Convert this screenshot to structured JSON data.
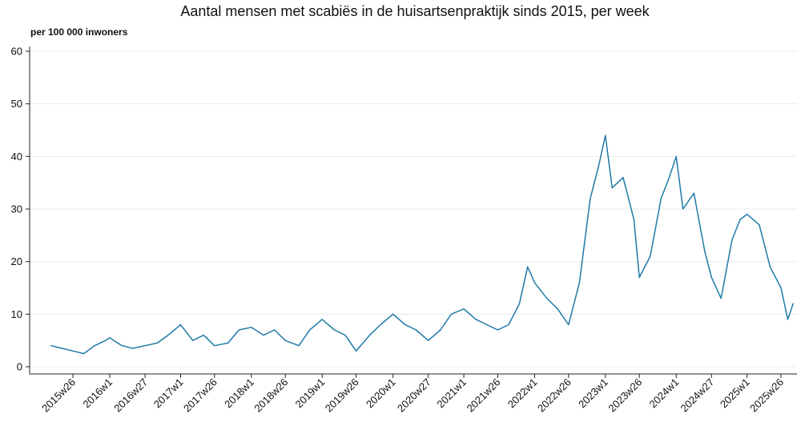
{
  "chart_data": {
    "type": "line",
    "title": "Aantal mensen met scabiës in de huisartsenpraktijk sinds 2015, per week",
    "unit_label": "per 100 000 inwoners",
    "xlabel": "",
    "ylabel": "",
    "ylim": [
      0,
      60
    ],
    "yticks": [
      "0",
      "10",
      "20",
      "30",
      "40",
      "50",
      "60"
    ],
    "grid": "horizontal",
    "line_color": "#1f7aa8",
    "xticks": [
      "2015w26",
      "2016w1",
      "2016w27",
      "2017w1",
      "2017w26",
      "2018w1",
      "2018w26",
      "2019w1",
      "2019w26",
      "2020w1",
      "2020w27",
      "2021w1",
      "2021w26",
      "2022w1",
      "2022w26",
      "2023w1",
      "2023w26",
      "2024w1",
      "2024w27",
      "2025w1",
      "2025w26"
    ],
    "series": [
      {
        "x": [
          "2015w10",
          "2015w18",
          "2015w26",
          "2015w34",
          "2015w42",
          "2015w50",
          "2016w1",
          "2016w10",
          "2016w18",
          "2016w27",
          "2016w36",
          "2016w44",
          "2017w1",
          "2017w10",
          "2017w18",
          "2017w26",
          "2017w36",
          "2017w44",
          "2018w1",
          "2018w10",
          "2018w18",
          "2018w26",
          "2018w36",
          "2018w44",
          "2019w1",
          "2019w10",
          "2019w18",
          "2019w26",
          "2019w36",
          "2019w44",
          "2020w1",
          "2020w10",
          "2020w18",
          "2020w27",
          "2020w36",
          "2020w44",
          "2021w1",
          "2021w10",
          "2021w18",
          "2021w26",
          "2021w34",
          "2021w42",
          "2021w48",
          "2022w1",
          "2022w10",
          "2022w18",
          "2022w26",
          "2022w34",
          "2022w42",
          "2022w48",
          "2023w1",
          "2023w6",
          "2023w14",
          "2023w22",
          "2023w26",
          "2023w34",
          "2023w42",
          "2023w48",
          "2024w1",
          "2024w6",
          "2024w14",
          "2024w22",
          "2024w27",
          "2024w34",
          "2024w42",
          "2024w48",
          "2025w1",
          "2025w10",
          "2025w18",
          "2025w22",
          "2025w26",
          "2025w31",
          "2025w35"
        ],
        "values": [
          4,
          3.5,
          3,
          2.5,
          4,
          5,
          5.5,
          4,
          3.5,
          4,
          4.5,
          6,
          8,
          5,
          6,
          4,
          4.5,
          7,
          7.5,
          6,
          7,
          5,
          4,
          7,
          9,
          7,
          6,
          3,
          6,
          8,
          10,
          8,
          7,
          5,
          7,
          10,
          11,
          9,
          8,
          7,
          8,
          12,
          19,
          16,
          13,
          11,
          8,
          16,
          32,
          38,
          44,
          34,
          36,
          28,
          17,
          21,
          32,
          36,
          40,
          30,
          33,
          22,
          17,
          13,
          24,
          28,
          29,
          27,
          19,
          17,
          15,
          9,
          12
        ]
      }
    ]
  }
}
